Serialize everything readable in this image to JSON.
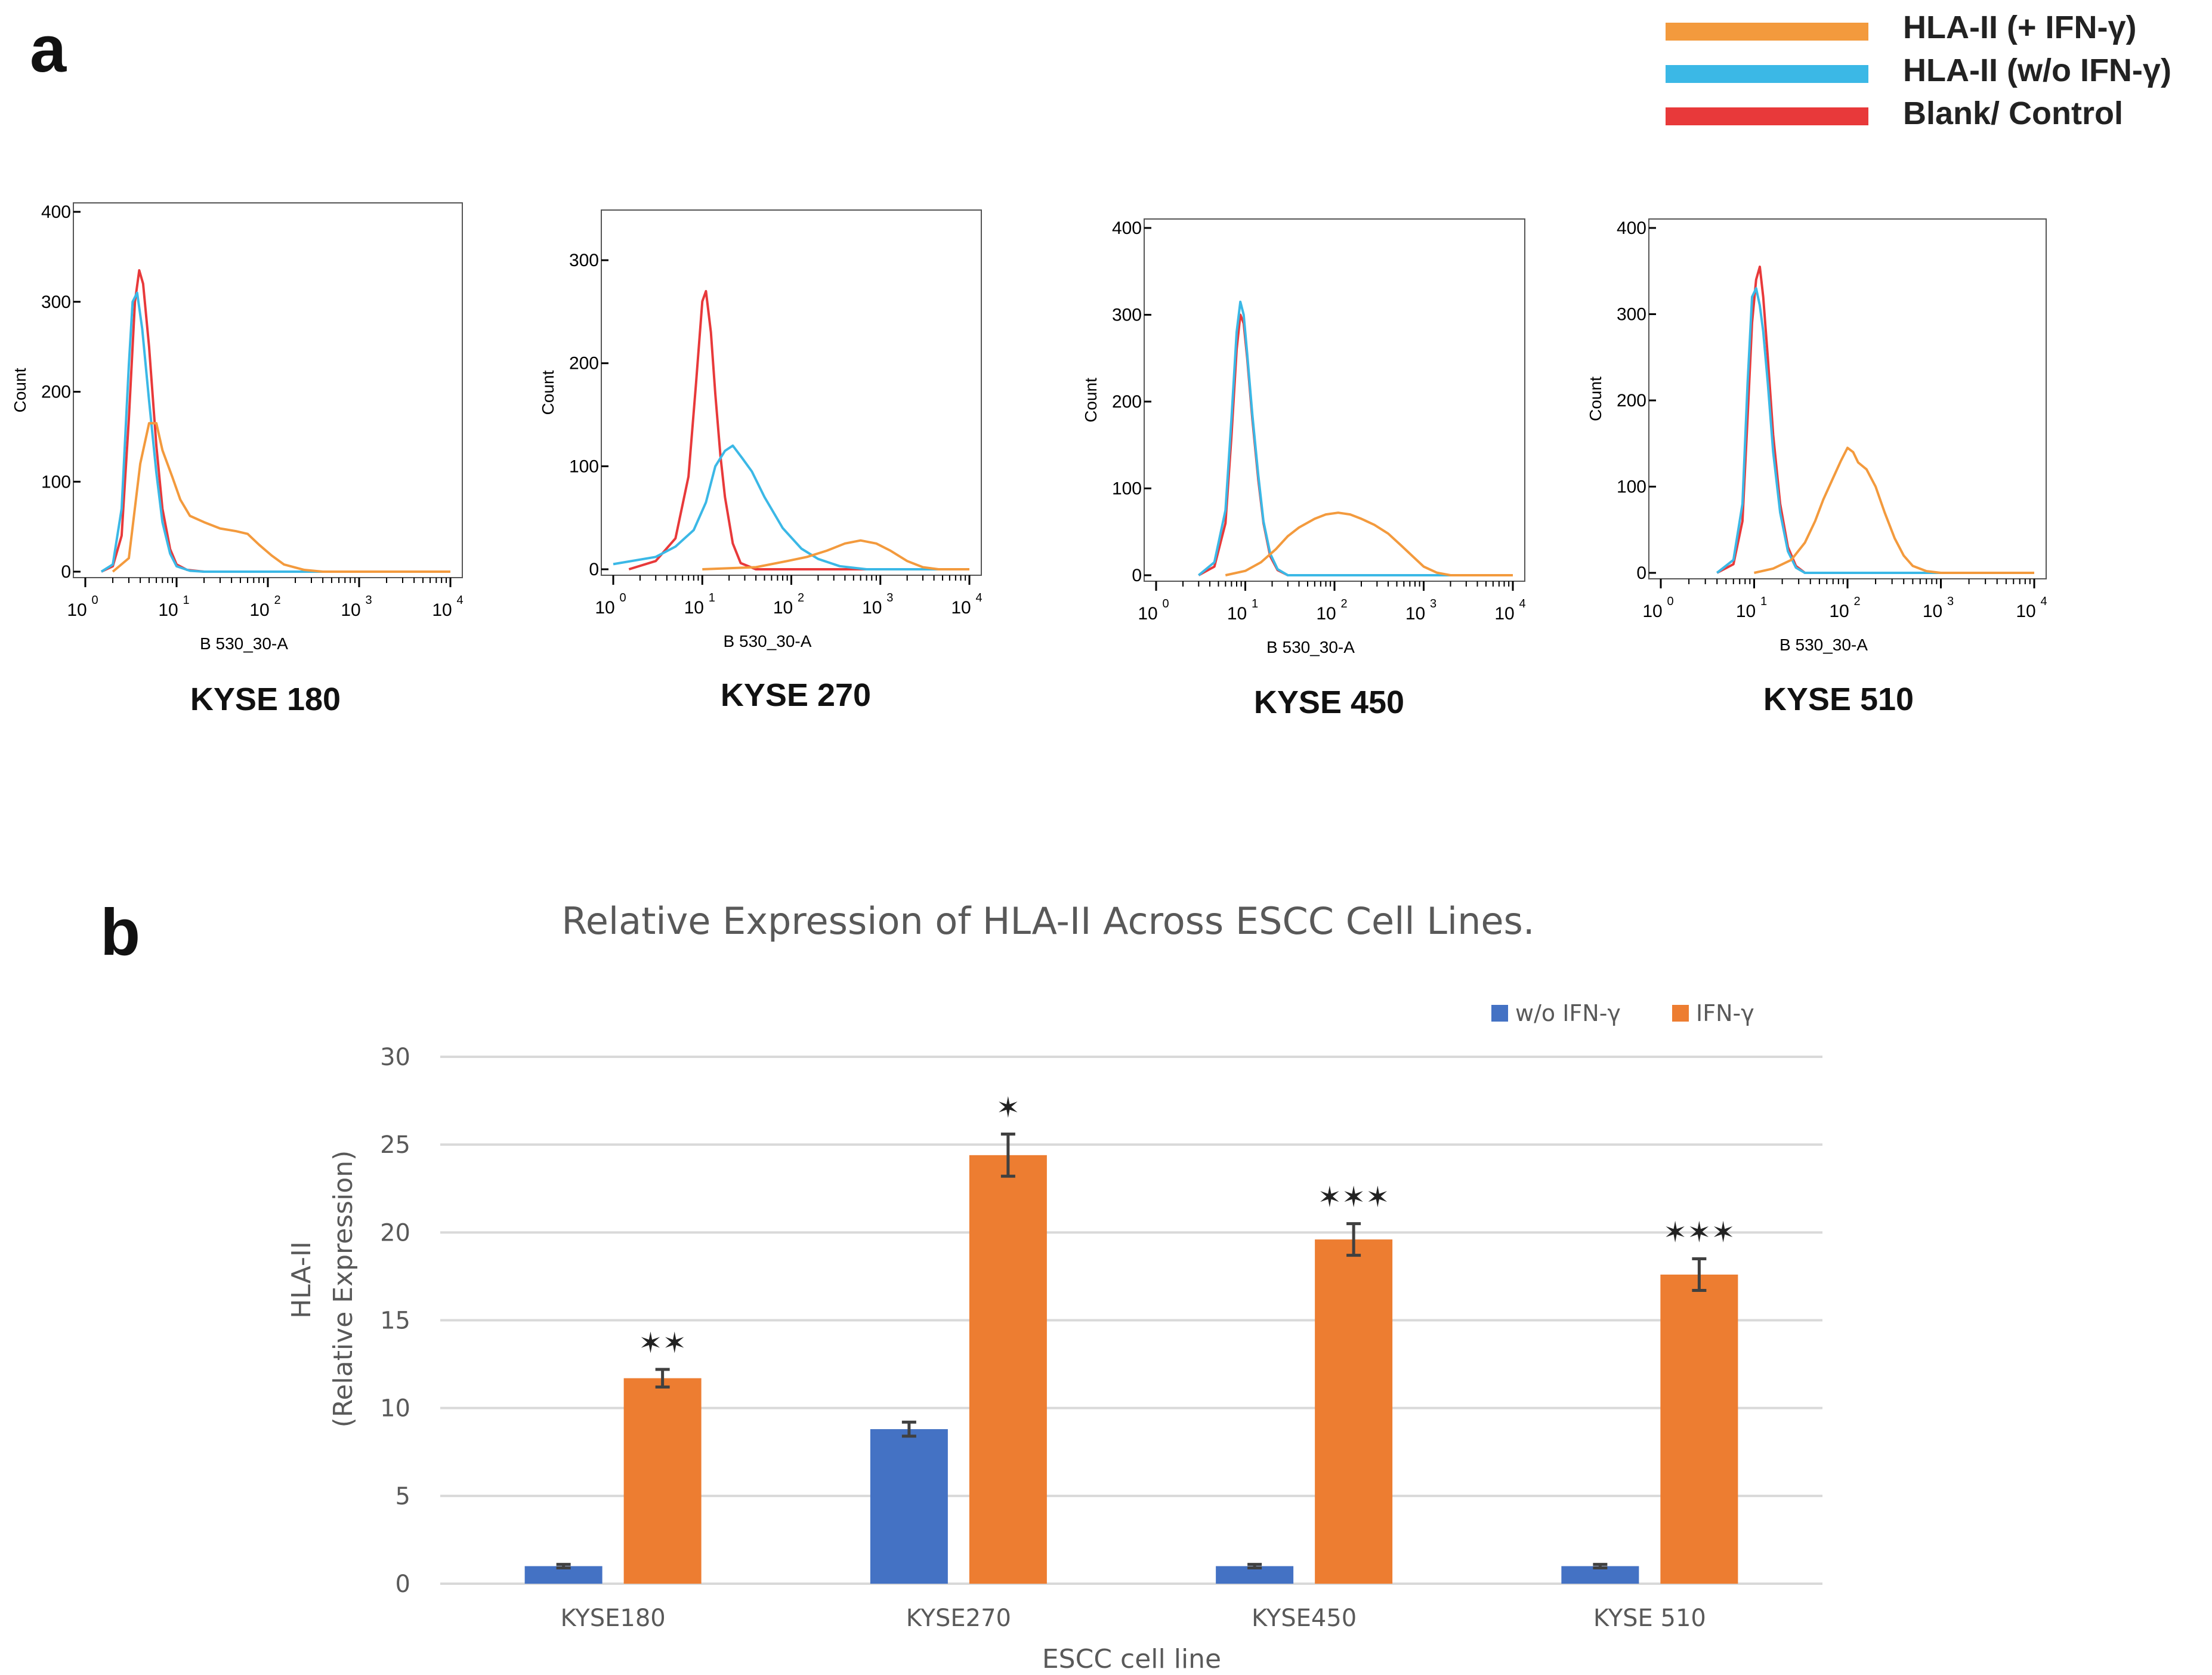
{
  "panels": {
    "a": {
      "label": "a"
    },
    "b": {
      "label": "b"
    }
  },
  "legend_a": {
    "items": [
      {
        "label": "HLA-II (+ IFN-γ)",
        "color": "#f39a3d"
      },
      {
        "label": "HLA-II (w/o IFN-γ)",
        "color": "#3bb8e6"
      },
      {
        "label": "Blank/ Control",
        "color": "#e8393a"
      }
    ]
  },
  "chart_data": [
    {
      "type": "histogram",
      "title": "KYSE 180",
      "xlabel": "B 530_30-A",
      "ylabel": "Count",
      "x_scale": "log",
      "xlim": [
        1,
        10000
      ],
      "ylim": [
        0,
        400
      ],
      "yticks": [
        0,
        100,
        200,
        300,
        400
      ],
      "xticks": [
        "10^0",
        "10^1",
        "10^2",
        "10^3",
        "10^4"
      ],
      "series": [
        {
          "name": "Blank/ Control",
          "color": "#e8393a",
          "points": [
            [
              1.5,
              0
            ],
            [
              2,
              6
            ],
            [
              2.5,
              40
            ],
            [
              3,
              170
            ],
            [
              3.5,
              300
            ],
            [
              3.9,
              335
            ],
            [
              4.3,
              320
            ],
            [
              5,
              250
            ],
            [
              6,
              140
            ],
            [
              7,
              70
            ],
            [
              8.5,
              25
            ],
            [
              10,
              8
            ],
            [
              13,
              2
            ],
            [
              20,
              0
            ],
            [
              10000,
              0
            ]
          ]
        },
        {
          "name": "HLA-II (w/o IFN-γ)",
          "color": "#3bb8e6",
          "points": [
            [
              1.5,
              0
            ],
            [
              2,
              8
            ],
            [
              2.5,
              70
            ],
            [
              3,
              230
            ],
            [
              3.3,
              300
            ],
            [
              3.7,
              310
            ],
            [
              4.2,
              270
            ],
            [
              5,
              190
            ],
            [
              6,
              110
            ],
            [
              7,
              55
            ],
            [
              8.5,
              20
            ],
            [
              10,
              6
            ],
            [
              14,
              1
            ],
            [
              20,
              0
            ],
            [
              10000,
              0
            ]
          ]
        },
        {
          "name": "HLA-II (+ IFN-γ)",
          "color": "#f39a3d",
          "points": [
            [
              2,
              0
            ],
            [
              3,
              15
            ],
            [
              4,
              120
            ],
            [
              5,
              165
            ],
            [
              6,
              165
            ],
            [
              7,
              135
            ],
            [
              9,
              105
            ],
            [
              11,
              80
            ],
            [
              14,
              62
            ],
            [
              20,
              55
            ],
            [
              30,
              48
            ],
            [
              45,
              45
            ],
            [
              60,
              42
            ],
            [
              80,
              30
            ],
            [
              110,
              18
            ],
            [
              150,
              8
            ],
            [
              250,
              2
            ],
            [
              400,
              0
            ],
            [
              10000,
              0
            ]
          ]
        }
      ]
    },
    {
      "type": "histogram",
      "title": "KYSE 270",
      "xlabel": "B 530_30-A",
      "ylabel": "Count",
      "x_scale": "log",
      "xlim": [
        1,
        10000
      ],
      "ylim": [
        0,
        340
      ],
      "yticks": [
        0,
        100,
        200,
        300
      ],
      "xticks": [
        "10^0",
        "10^1",
        "10^2",
        "10^3",
        "10^4"
      ],
      "series": [
        {
          "name": "Blank/ Control",
          "color": "#e8393a",
          "points": [
            [
              1.5,
              0
            ],
            [
              3,
              8
            ],
            [
              5,
              30
            ],
            [
              7,
              90
            ],
            [
              8.5,
              180
            ],
            [
              10,
              260
            ],
            [
              11,
              270
            ],
            [
              12.5,
              230
            ],
            [
              14,
              170
            ],
            [
              16,
              110
            ],
            [
              18,
              70
            ],
            [
              22,
              25
            ],
            [
              27,
              6
            ],
            [
              40,
              0
            ],
            [
              10000,
              0
            ]
          ]
        },
        {
          "name": "HLA-II (w/o IFN-γ)",
          "color": "#3bb8e6",
          "points": [
            [
              1,
              5
            ],
            [
              3,
              12
            ],
            [
              5,
              22
            ],
            [
              8,
              38
            ],
            [
              11,
              65
            ],
            [
              14,
              100
            ],
            [
              18,
              115
            ],
            [
              22,
              120
            ],
            [
              28,
              108
            ],
            [
              36,
              95
            ],
            [
              50,
              70
            ],
            [
              80,
              40
            ],
            [
              130,
              20
            ],
            [
              200,
              10
            ],
            [
              350,
              3
            ],
            [
              700,
              0
            ],
            [
              10000,
              0
            ]
          ]
        },
        {
          "name": "HLA-II (+ IFN-γ)",
          "color": "#f39a3d",
          "points": [
            [
              10,
              0
            ],
            [
              40,
              2
            ],
            [
              90,
              8
            ],
            [
              150,
              12
            ],
            [
              250,
              18
            ],
            [
              400,
              25
            ],
            [
              600,
              28
            ],
            [
              900,
              25
            ],
            [
              1300,
              18
            ],
            [
              2000,
              8
            ],
            [
              3000,
              2
            ],
            [
              4500,
              0
            ],
            [
              10000,
              0
            ]
          ]
        }
      ]
    },
    {
      "type": "histogram",
      "title": "KYSE 450",
      "xlabel": "B 530_30-A",
      "ylabel": "Count",
      "x_scale": "log",
      "xlim": [
        1,
        10000
      ],
      "ylim": [
        0,
        400
      ],
      "yticks": [
        0,
        100,
        200,
        300,
        400
      ],
      "xticks": [
        "10^0",
        "10^1",
        "10^2",
        "10^3",
        "10^4"
      ],
      "series": [
        {
          "name": "Blank/ Control",
          "color": "#e8393a",
          "points": [
            [
              3,
              0
            ],
            [
              4.5,
              10
            ],
            [
              6,
              60
            ],
            [
              7,
              160
            ],
            [
              8,
              260
            ],
            [
              8.8,
              300
            ],
            [
              9.6,
              290
            ],
            [
              10.5,
              250
            ],
            [
              12,
              180
            ],
            [
              14,
              110
            ],
            [
              16,
              60
            ],
            [
              19,
              22
            ],
            [
              23,
              6
            ],
            [
              30,
              0
            ],
            [
              10000,
              0
            ]
          ]
        },
        {
          "name": "HLA-II (w/o IFN-γ)",
          "color": "#3bb8e6",
          "points": [
            [
              3,
              0
            ],
            [
              4.5,
              15
            ],
            [
              6,
              75
            ],
            [
              7,
              180
            ],
            [
              8,
              280
            ],
            [
              8.8,
              315
            ],
            [
              9.6,
              300
            ],
            [
              10.5,
              255
            ],
            [
              12,
              185
            ],
            [
              14,
              115
            ],
            [
              16,
              62
            ],
            [
              19,
              25
            ],
            [
              23,
              7
            ],
            [
              30,
              0
            ],
            [
              10000,
              0
            ]
          ]
        },
        {
          "name": "HLA-II (+ IFN-γ)",
          "color": "#f39a3d",
          "points": [
            [
              6,
              0
            ],
            [
              10,
              5
            ],
            [
              15,
              15
            ],
            [
              22,
              30
            ],
            [
              30,
              45
            ],
            [
              40,
              55
            ],
            [
              60,
              65
            ],
            [
              80,
              70
            ],
            [
              110,
              72
            ],
            [
              150,
              70
            ],
            [
              200,
              65
            ],
            [
              280,
              58
            ],
            [
              400,
              48
            ],
            [
              550,
              35
            ],
            [
              750,
              22
            ],
            [
              1000,
              10
            ],
            [
              1400,
              3
            ],
            [
              2000,
              0
            ],
            [
              10000,
              0
            ]
          ]
        }
      ]
    },
    {
      "type": "histogram",
      "title": "KYSE 510",
      "xlabel": "B 530_30-A",
      "ylabel": "Count",
      "x_scale": "log",
      "xlim": [
        1,
        10000
      ],
      "ylim": [
        0,
        400
      ],
      "yticks": [
        0,
        100,
        200,
        300,
        400
      ],
      "xticks": [
        "10^0",
        "10^1",
        "10^2",
        "10^3",
        "10^4"
      ],
      "series": [
        {
          "name": "Blank/ Control",
          "color": "#e8393a",
          "points": [
            [
              4,
              0
            ],
            [
              6,
              10
            ],
            [
              7.5,
              60
            ],
            [
              8.5,
              180
            ],
            [
              9.5,
              290
            ],
            [
              10.5,
              340
            ],
            [
              11.5,
              355
            ],
            [
              12.5,
              320
            ],
            [
              14,
              250
            ],
            [
              16,
              160
            ],
            [
              19,
              80
            ],
            [
              23,
              30
            ],
            [
              28,
              8
            ],
            [
              35,
              0
            ],
            [
              10000,
              0
            ]
          ]
        },
        {
          "name": "HLA-II (w/o IFN-γ)",
          "color": "#3bb8e6",
          "points": [
            [
              4,
              0
            ],
            [
              6,
              15
            ],
            [
              7.5,
              80
            ],
            [
              8.5,
              220
            ],
            [
              9.5,
              320
            ],
            [
              10.5,
              330
            ],
            [
              11.5,
              310
            ],
            [
              12.5,
              280
            ],
            [
              14,
              220
            ],
            [
              16,
              140
            ],
            [
              19,
              70
            ],
            [
              23,
              25
            ],
            [
              28,
              6
            ],
            [
              35,
              0
            ],
            [
              10000,
              0
            ]
          ]
        },
        {
          "name": "HLA-II (+ IFN-γ)",
          "color": "#f39a3d",
          "points": [
            [
              10,
              0
            ],
            [
              16,
              5
            ],
            [
              25,
              15
            ],
            [
              35,
              35
            ],
            [
              45,
              60
            ],
            [
              55,
              85
            ],
            [
              70,
              110
            ],
            [
              85,
              130
            ],
            [
              100,
              145
            ],
            [
              115,
              140
            ],
            [
              130,
              128
            ],
            [
              160,
              120
            ],
            [
              200,
              100
            ],
            [
              250,
              70
            ],
            [
              320,
              40
            ],
            [
              400,
              20
            ],
            [
              500,
              8
            ],
            [
              700,
              2
            ],
            [
              1000,
              0
            ],
            [
              10000,
              0
            ]
          ]
        }
      ]
    },
    {
      "type": "bar",
      "title": "Relative Expression of HLA-II Across ESCC Cell Lines.",
      "xlabel": "ESCC cell line",
      "ylabel_line1": "HLA-II",
      "ylabel_line2": "(Relative Expression)",
      "ylim": [
        0,
        30
      ],
      "yticks": [
        0,
        5,
        10,
        15,
        20,
        25,
        30
      ],
      "categories": [
        "KYSE180",
        "KYSE270",
        "KYSE450",
        "KYSE 510"
      ],
      "series": [
        {
          "name": "w/o IFN-γ",
          "color": "#4472c4",
          "values": [
            1.0,
            8.8,
            1.0,
            1.0
          ],
          "errors": [
            0.1,
            0.4,
            0.1,
            0.1
          ]
        },
        {
          "name": "IFN-γ",
          "color": "#ed7d31",
          "values": [
            11.7,
            24.4,
            19.6,
            17.6
          ],
          "errors": [
            0.5,
            1.2,
            0.9,
            0.9
          ]
        }
      ],
      "annotations": [
        "✶✶",
        "✶",
        "✶✶✶",
        "✶✶✶"
      ]
    }
  ]
}
